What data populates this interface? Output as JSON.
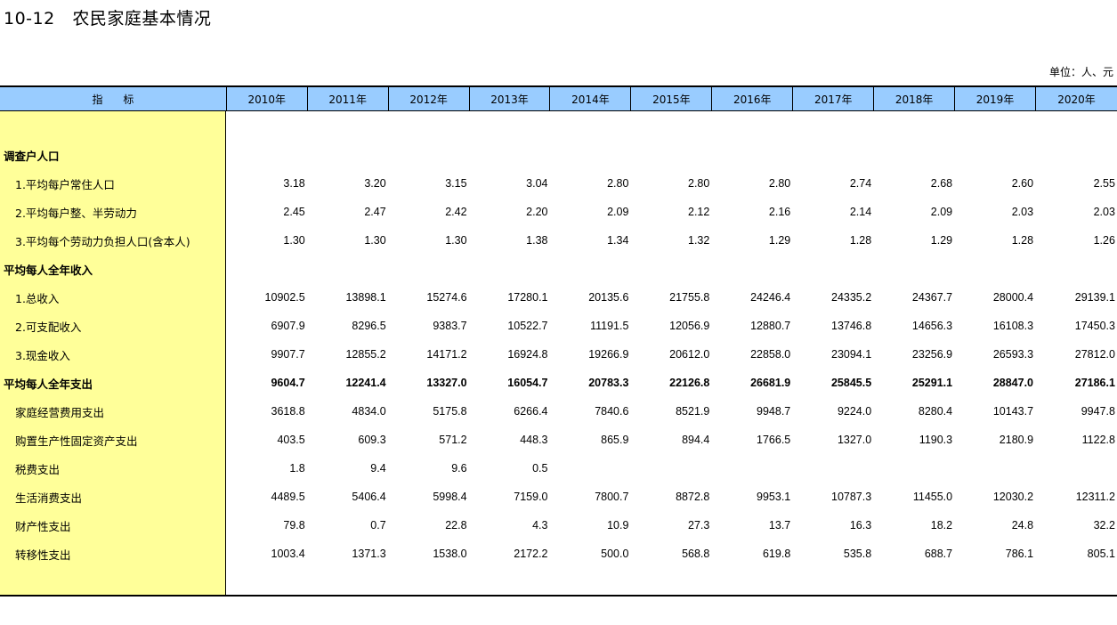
{
  "title": "10-12   农民家庭基本情况",
  "unit": "单位：人、元",
  "header": {
    "indicator": "指      标",
    "years": [
      "2010年",
      "2011年",
      "2012年",
      "2013年",
      "2014年",
      "2015年",
      "2016年",
      "2017年",
      "2018年",
      "2019年",
      "2020年"
    ]
  },
  "colors": {
    "header_bg": "#99ccff",
    "label_col_bg": "#ffff99"
  },
  "rows": [
    {
      "label": "调查户人口",
      "type": "section",
      "values": [
        "",
        "",
        "",
        "",
        "",
        "",
        "",
        "",
        "",
        "",
        ""
      ]
    },
    {
      "label": "1.平均每户常住人口",
      "type": "indent1",
      "values": [
        "3.18",
        "3.20",
        "3.15",
        "3.04",
        "2.80",
        "2.80",
        "2.80",
        "2.74",
        "2.68",
        "2.60",
        "2.55"
      ]
    },
    {
      "label": "2.平均每户整、半劳动力",
      "type": "indent1",
      "values": [
        "2.45",
        "2.47",
        "2.42",
        "2.20",
        "2.09",
        "2.12",
        "2.16",
        "2.14",
        "2.09",
        "2.03",
        "2.03"
      ]
    },
    {
      "label": "3.平均每个劳动力负担人口(含本人)",
      "type": "indent1",
      "values": [
        "1.30",
        "1.30",
        "1.30",
        "1.38",
        "1.34",
        "1.32",
        "1.29",
        "1.28",
        "1.29",
        "1.28",
        "1.26"
      ]
    },
    {
      "label": "平均每人全年收入",
      "type": "section",
      "values": [
        "",
        "",
        "",
        "",
        "",
        "",
        "",
        "",
        "",
        "",
        ""
      ]
    },
    {
      "label": "1.总收入",
      "type": "indent1",
      "values": [
        "10902.5",
        "13898.1",
        "15274.6",
        "17280.1",
        "20135.6",
        "21755.8",
        "24246.4",
        "24335.2",
        "24367.7",
        "28000.4",
        "29139.1"
      ]
    },
    {
      "label": "2.可支配收入",
      "type": "indent1",
      "values": [
        "6907.9",
        "8296.5",
        "9383.7",
        "10522.7",
        "11191.5",
        "12056.9",
        "12880.7",
        "13746.8",
        "14656.3",
        "16108.3",
        "17450.3"
      ]
    },
    {
      "label": "3.现金收入",
      "type": "indent1",
      "values": [
        "9907.7",
        "12855.2",
        "14171.2",
        "16924.8",
        "19266.9",
        "20612.0",
        "22858.0",
        "23094.1",
        "23256.9",
        "26593.3",
        "27812.0"
      ]
    },
    {
      "label": "平均每人全年支出",
      "type": "section",
      "bold": true,
      "values": [
        "9604.7",
        "12241.4",
        "13327.0",
        "16054.7",
        "20783.3",
        "22126.8",
        "26681.9",
        "25845.5",
        "25291.1",
        "28847.0",
        "27186.1"
      ]
    },
    {
      "label": "家庭经营费用支出",
      "type": "indent2",
      "values": [
        "3618.8",
        "4834.0",
        "5175.8",
        "6266.4",
        "7840.6",
        "8521.9",
        "9948.7",
        "9224.0",
        "8280.4",
        "10143.7",
        "9947.8"
      ]
    },
    {
      "label": "购置生产性固定资产支出",
      "type": "indent2",
      "values": [
        "403.5",
        "609.3",
        "571.2",
        "448.3",
        "865.9",
        "894.4",
        "1766.5",
        "1327.0",
        "1190.3",
        "2180.9",
        "1122.8"
      ]
    },
    {
      "label": "税费支出",
      "type": "indent2",
      "values": [
        "1.8",
        "9.4",
        "9.6",
        "0.5",
        "",
        "",
        "",
        "",
        "",
        "",
        ""
      ]
    },
    {
      "label": "生活消费支出",
      "type": "indent2",
      "values": [
        "4489.5",
        "5406.4",
        "5998.4",
        "7159.0",
        "7800.7",
        "8872.8",
        "9953.1",
        "10787.3",
        "11455.0",
        "12030.2",
        "12311.2"
      ]
    },
    {
      "label": "财产性支出",
      "type": "indent2",
      "values": [
        "79.8",
        "0.7",
        "22.8",
        "4.3",
        "10.9",
        "27.3",
        "13.7",
        "16.3",
        "18.2",
        "24.8",
        "32.2"
      ]
    },
    {
      "label": "转移性支出",
      "type": "indent2",
      "values": [
        "1003.4",
        "1371.3",
        "1538.0",
        "2172.2",
        "500.0",
        "568.8",
        "619.8",
        "535.8",
        "688.7",
        "786.1",
        "805.1"
      ]
    }
  ]
}
